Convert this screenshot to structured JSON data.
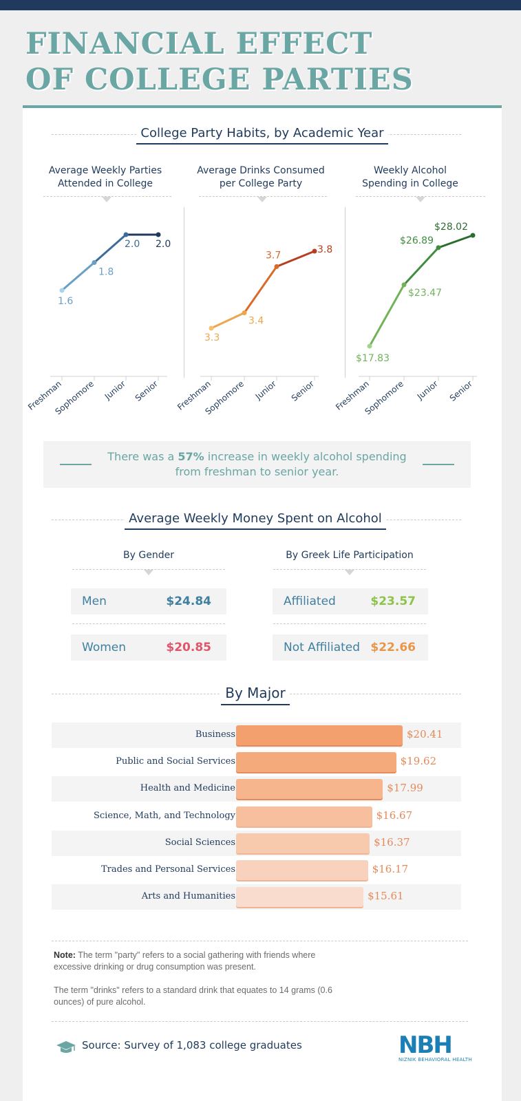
{
  "title_line1": "FINANCIAL EFFECT",
  "title_line2": "OF COLLEGE PARTIES",
  "section1_title": "College Party Habits, by Academic Year",
  "chart_data": [
    {
      "type": "line",
      "title": "Average Weekly Parties Attended in College",
      "categories": [
        "Freshman",
        "Sophomore",
        "Junior",
        "Senior"
      ],
      "values": [
        1.6,
        1.8,
        2.0,
        2.0
      ],
      "labels": [
        "1.6",
        "1.8",
        "2.0",
        "2.0"
      ],
      "colors": [
        "#a9d3e6",
        "#6a9fc4",
        "#3d6c9a",
        "#1f3a5c"
      ]
    },
    {
      "type": "line",
      "title": "Average Drinks Consumed per College Party",
      "categories": [
        "Freshman",
        "Sophomore",
        "Junior",
        "Senior"
      ],
      "values": [
        3.3,
        3.4,
        3.7,
        3.8
      ],
      "labels": [
        "3.3",
        "3.4",
        "3.7",
        "3.8"
      ],
      "colors": [
        "#f4c06a",
        "#eda64e",
        "#d96a2a",
        "#b5401f"
      ]
    },
    {
      "type": "line",
      "title": "Weekly Alcohol Spending in College",
      "categories": [
        "Freshman",
        "Sophomore",
        "Junior",
        "Senior"
      ],
      "values": [
        17.83,
        23.47,
        26.89,
        28.02
      ],
      "labels": [
        "$17.83",
        "$23.47",
        "$26.89",
        "$28.02"
      ],
      "colors": [
        "#a5d38a",
        "#72b35a",
        "#3f8e3f",
        "#2a6e2e"
      ]
    },
    {
      "type": "bar",
      "title": "By Major",
      "categories": [
        "Business",
        "Public and Social Services",
        "Health and Medicine",
        "Science, Math, and Technology",
        "Social Sciences",
        "Trades and Personal Services",
        "Arts and Humanities"
      ],
      "values": [
        20.41,
        19.62,
        17.99,
        16.67,
        16.37,
        16.17,
        15.61
      ],
      "labels": [
        "$20.41",
        "$19.62",
        "$17.99",
        "$16.67",
        "$16.37",
        "$16.17",
        "$15.61"
      ],
      "colors": [
        "#f4a06e",
        "#f5aa7c",
        "#f6b58d",
        "#f7bf9d",
        "#f7c9ad",
        "#f8d2bd",
        "#f9dccd"
      ]
    }
  ],
  "callout": {
    "before": "There was a ",
    "highlight": "57%",
    "after": " increase in weekly alcohol spending from freshman to senior year."
  },
  "section2_title": "Average Weekly Money Spent on Alcohol",
  "gender": {
    "title": "By Gender",
    "items": [
      {
        "label": "Men",
        "value": "$24.84",
        "color": "#3f7f9f"
      },
      {
        "label": "Women",
        "value": "$20.85",
        "color": "#e0556a"
      }
    ]
  },
  "greek": {
    "title": "By Greek Life Participation",
    "items": [
      {
        "label": "Affiliated",
        "value": "$23.57",
        "color": "#8ec34a"
      },
      {
        "label": "Not Affiliated",
        "value": "$22.66",
        "color": "#e8964a"
      }
    ]
  },
  "section3_title": "By Major",
  "note": {
    "label": "Note:",
    "p1": " The term \"party\" refers to a social gathering with friends where excessive drinking or drug consumption was present.",
    "p2": "The term \"drinks\" refers to a standard drink that equates to 14 grams (0.6 ounces) of pure alcohol."
  },
  "source": "Source: Survey of 1,083 college graduates",
  "logo": {
    "mark": "NBH",
    "name": "NIZNIK BEHAVIORAL HEALTH"
  }
}
